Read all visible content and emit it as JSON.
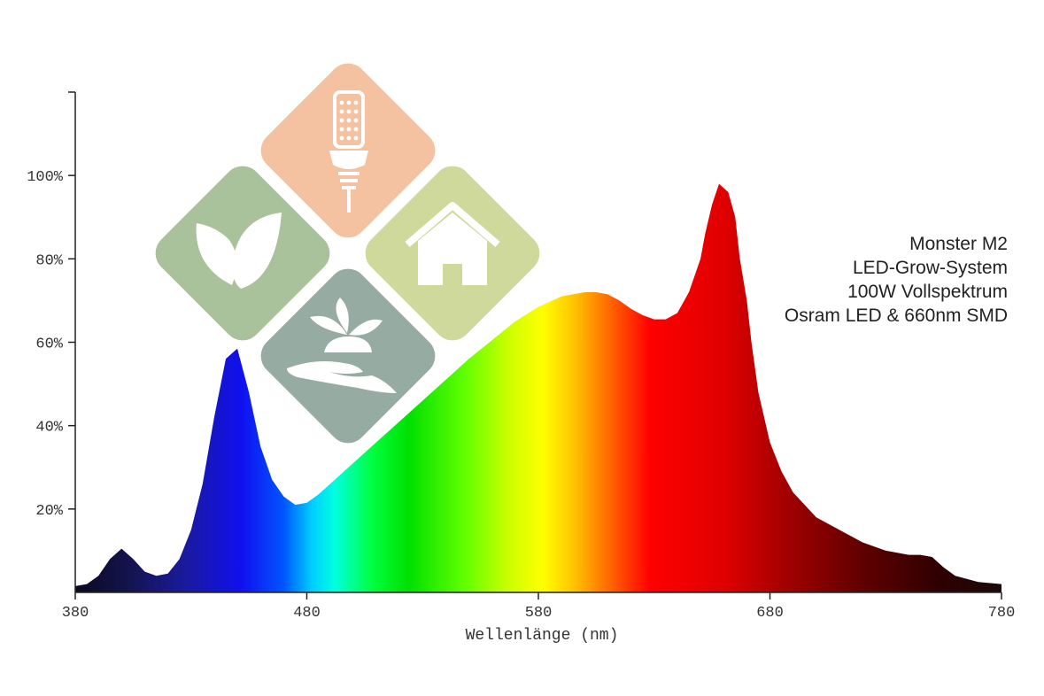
{
  "info": {
    "lines": [
      "Monster M2",
      "LED-Grow-System",
      "100W Vollspektrum",
      "Osram LED & 660nm SMD"
    ]
  },
  "logo": {
    "tiles": [
      {
        "icon": "led-bulb-icon",
        "color": "#f4c2a1"
      },
      {
        "icon": "leaves-icon",
        "color": "#aac29b"
      },
      {
        "icon": "house-icon",
        "color": "#cfd99b"
      },
      {
        "icon": "hand-plant-icon",
        "color": "#96aba1"
      }
    ]
  },
  "chart_data": {
    "type": "area",
    "xlabel": "Wellenlänge (nm)",
    "xlim": [
      380,
      780
    ],
    "ylim": [
      0,
      120
    ],
    "x_ticks": [
      380,
      480,
      580,
      680,
      780
    ],
    "x_tick_labels": [
      "380",
      "480",
      "580",
      "680",
      "780"
    ],
    "y_ticks": [
      20,
      40,
      60,
      80,
      100
    ],
    "y_tick_labels": [
      "20%",
      "40%",
      "60%",
      "80%",
      "100%"
    ],
    "grid": false,
    "fill": "visible-spectrum-gradient",
    "series": [
      {
        "x": [
          380,
          385,
          390,
          395,
          400,
          405,
          410,
          415,
          420,
          425,
          430,
          435,
          440,
          445,
          450,
          455,
          460,
          465,
          470,
          475,
          480,
          485,
          490,
          500,
          510,
          520,
          530,
          540,
          550,
          560,
          570,
          580,
          590,
          600,
          605,
          610,
          615,
          620,
          625,
          630,
          635,
          640,
          645,
          650,
          652,
          655,
          658,
          660,
          662,
          665,
          667,
          670,
          672,
          675,
          680,
          685,
          690,
          700,
          710,
          720,
          730,
          740,
          745,
          750,
          755,
          760,
          770,
          780
        ],
        "y": [
          1.5,
          2,
          4,
          8,
          10.5,
          8,
          5,
          4,
          4.5,
          8,
          15,
          26,
          42,
          56,
          58.5,
          48,
          35,
          27,
          23,
          21,
          21.5,
          23.5,
          26,
          31,
          36,
          41,
          46,
          51,
          56,
          60.5,
          65,
          68.5,
          71,
          72,
          72,
          71.5,
          70,
          68,
          66.5,
          65.5,
          65.5,
          67,
          72,
          80,
          86,
          93,
          98,
          97,
          96,
          90,
          80,
          70,
          60,
          48,
          36,
          29,
          24,
          18,
          15,
          12,
          10,
          9,
          9,
          8.5,
          6,
          4,
          2.5,
          2
        ]
      }
    ]
  }
}
